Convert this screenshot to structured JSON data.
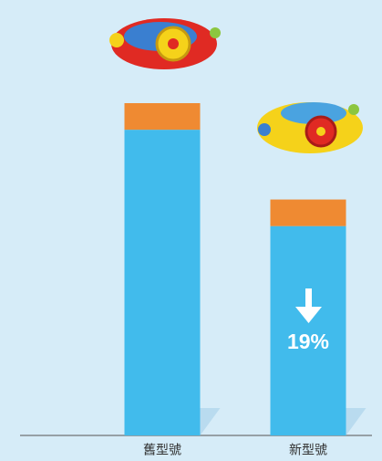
{
  "chart_data": {
    "type": "stacked_bar",
    "categories": [
      "舊型號",
      "新型號"
    ],
    "series": [
      {
        "color": "#41bbec",
        "values": [
          92,
          63
        ]
      },
      {
        "color": "#ef8a32",
        "values": [
          8,
          8
        ]
      }
    ],
    "ylim": [
      0,
      100
    ],
    "annotation": "19%"
  }
}
